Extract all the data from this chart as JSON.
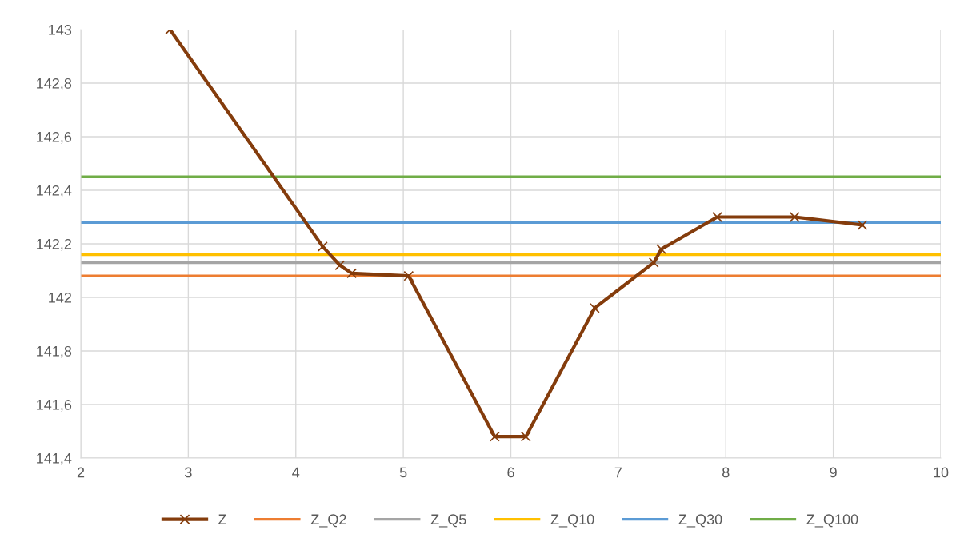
{
  "chart_data": {
    "type": "line",
    "xlim": [
      2,
      10
    ],
    "ylim": [
      141.4,
      143
    ],
    "xticks": [
      2,
      3,
      4,
      5,
      6,
      7,
      8,
      9,
      10
    ],
    "yticks": [
      {
        "value": 141.4,
        "label": "141,4"
      },
      {
        "value": 141.6,
        "label": "141,6"
      },
      {
        "value": 141.8,
        "label": "141,8"
      },
      {
        "value": 142,
        "label": "142"
      },
      {
        "value": 142.2,
        "label": "142,2"
      },
      {
        "value": 142.4,
        "label": "142,4"
      },
      {
        "value": 142.6,
        "label": "142,6"
      },
      {
        "value": 142.8,
        "label": "142,8"
      },
      {
        "value": 143,
        "label": "143"
      }
    ],
    "grid": true,
    "legend": "bottom",
    "series": [
      {
        "name": "Z",
        "color": "#843c0c",
        "marker": "cross",
        "x": [
          2.83,
          4.25,
          4.41,
          4.52,
          5.05,
          5.85,
          6.14,
          6.78,
          7.33,
          7.4,
          7.92,
          8.64,
          9.27
        ],
        "values": [
          143,
          142.19,
          142.12,
          142.09,
          142.08,
          141.48,
          141.48,
          141.96,
          142.13,
          142.18,
          142.3,
          142.3,
          142.27
        ]
      },
      {
        "name": "Z_Q2",
        "color": "#ed7d31",
        "marker": "none",
        "x": [
          2,
          10
        ],
        "values": [
          142.08,
          142.08
        ]
      },
      {
        "name": "Z_Q5",
        "color": "#a5a5a5",
        "marker": "none",
        "x": [
          2,
          10
        ],
        "values": [
          142.13,
          142.13
        ]
      },
      {
        "name": "Z_Q10",
        "color": "#ffc000",
        "marker": "none",
        "x": [
          2,
          10
        ],
        "values": [
          142.16,
          142.16
        ]
      },
      {
        "name": "Z_Q30",
        "color": "#5b9bd5",
        "marker": "none",
        "x": [
          2,
          10
        ],
        "values": [
          142.28,
          142.28
        ]
      },
      {
        "name": "Z_Q100",
        "color": "#70ad47",
        "marker": "none",
        "x": [
          2,
          10
        ],
        "values": [
          142.45,
          142.45
        ]
      }
    ]
  }
}
